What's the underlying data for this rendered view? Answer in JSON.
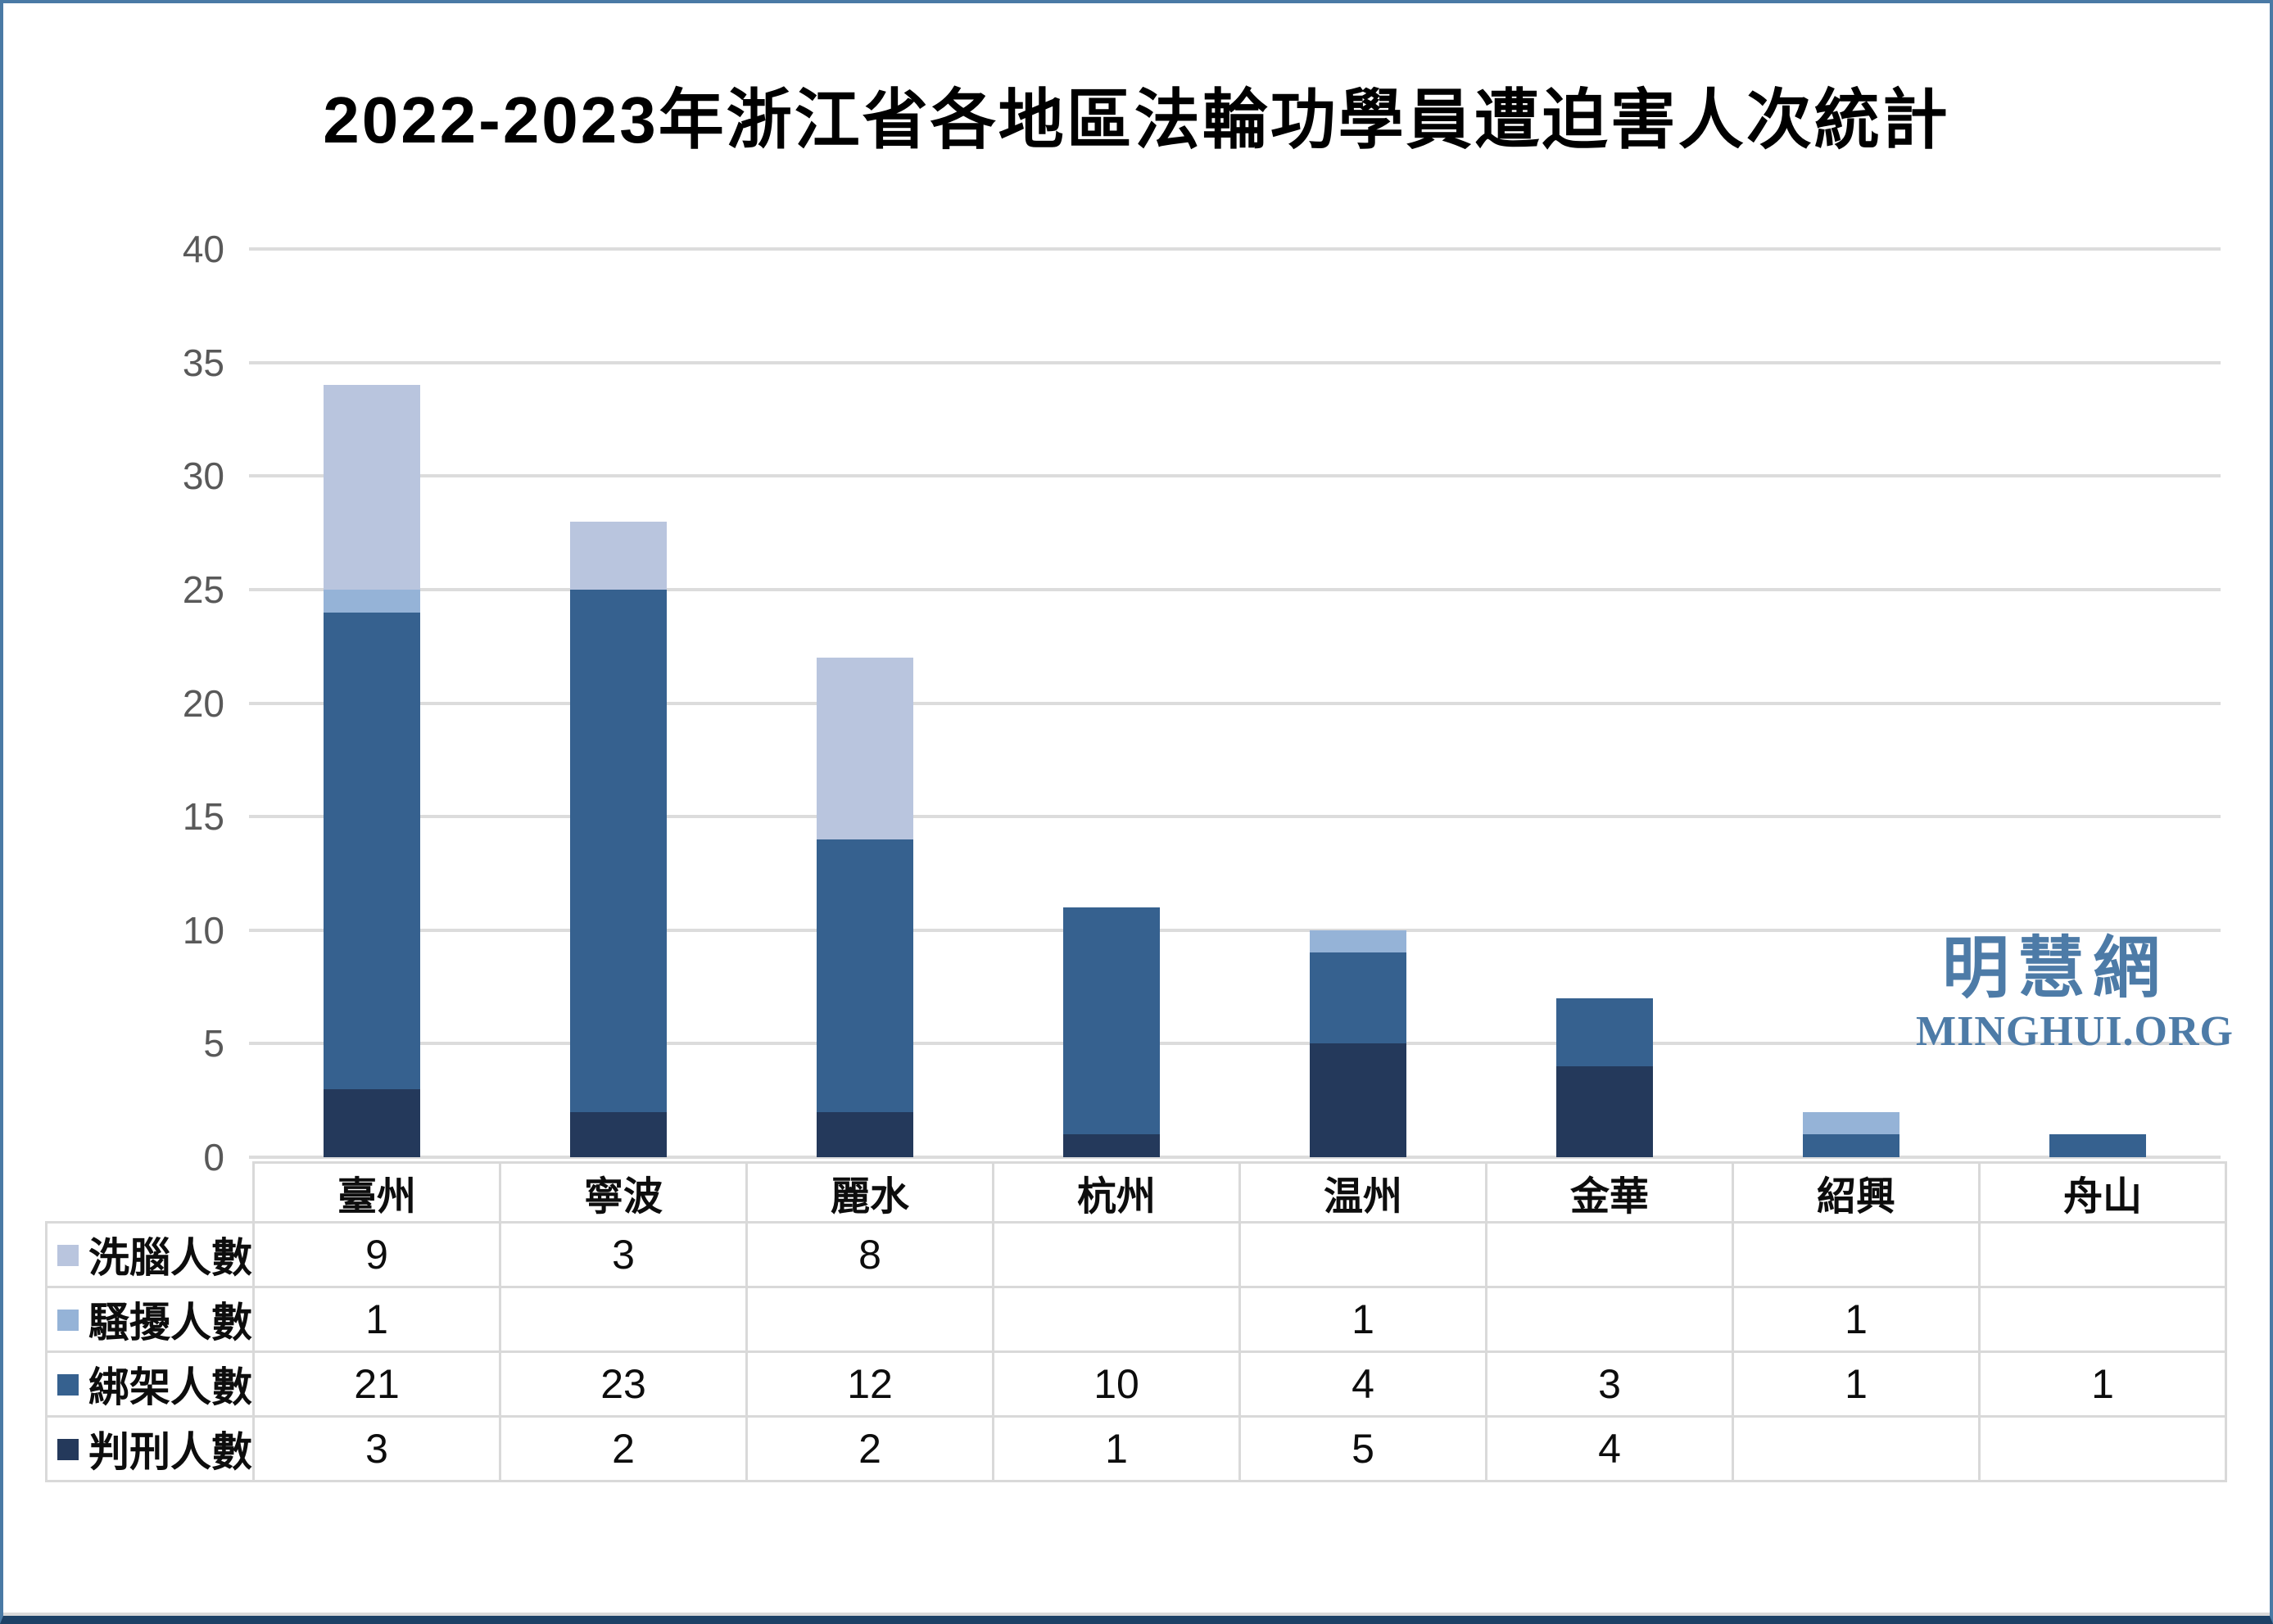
{
  "title": "2022-2023年浙江省各地區法輪功學員遭迫害人次統計",
  "watermark": {
    "cn": "明慧網",
    "en": "MINGHUI.ORG"
  },
  "chart_data": {
    "type": "bar",
    "stacked": true,
    "title": "2022-2023年浙江省各地區法輪功學員遭迫害人次統計",
    "categories": [
      "臺州",
      "寧波",
      "麗水",
      "杭州",
      "温州",
      "金華",
      "紹興",
      "舟山"
    ],
    "series": [
      {
        "name": "洗腦人數",
        "color": "#b9c5de",
        "values": [
          9,
          3,
          8,
          null,
          null,
          null,
          null,
          null
        ]
      },
      {
        "name": "騷擾人數",
        "color": "#95b3d7",
        "values": [
          1,
          null,
          null,
          null,
          1,
          null,
          1,
          null
        ]
      },
      {
        "name": "綁架人數",
        "color": "#36618f",
        "values": [
          21,
          23,
          12,
          10,
          4,
          3,
          1,
          1
        ]
      },
      {
        "name": "判刑人數",
        "color": "#24395b",
        "values": [
          3,
          2,
          2,
          1,
          5,
          4,
          null,
          null
        ]
      }
    ],
    "stack_order_bottom_up": [
      "判刑人數",
      "綁架人數",
      "騷擾人數",
      "洗腦人數"
    ],
    "xlabel": "",
    "ylabel": "",
    "ylim": [
      0,
      40
    ],
    "ytick_step": 5,
    "yticks": [
      0,
      5,
      10,
      15,
      20,
      25,
      30,
      35,
      40
    ],
    "grid": true,
    "legend_position": "table-left-column",
    "colors": {
      "gridline": "#dcdcdc",
      "tick_text": "#595959",
      "table_border": "#d9d9d9",
      "watermark": "#4d7ba7",
      "frame_border": "#4a7aa5",
      "frame_bottom": "#1d4166"
    }
  }
}
